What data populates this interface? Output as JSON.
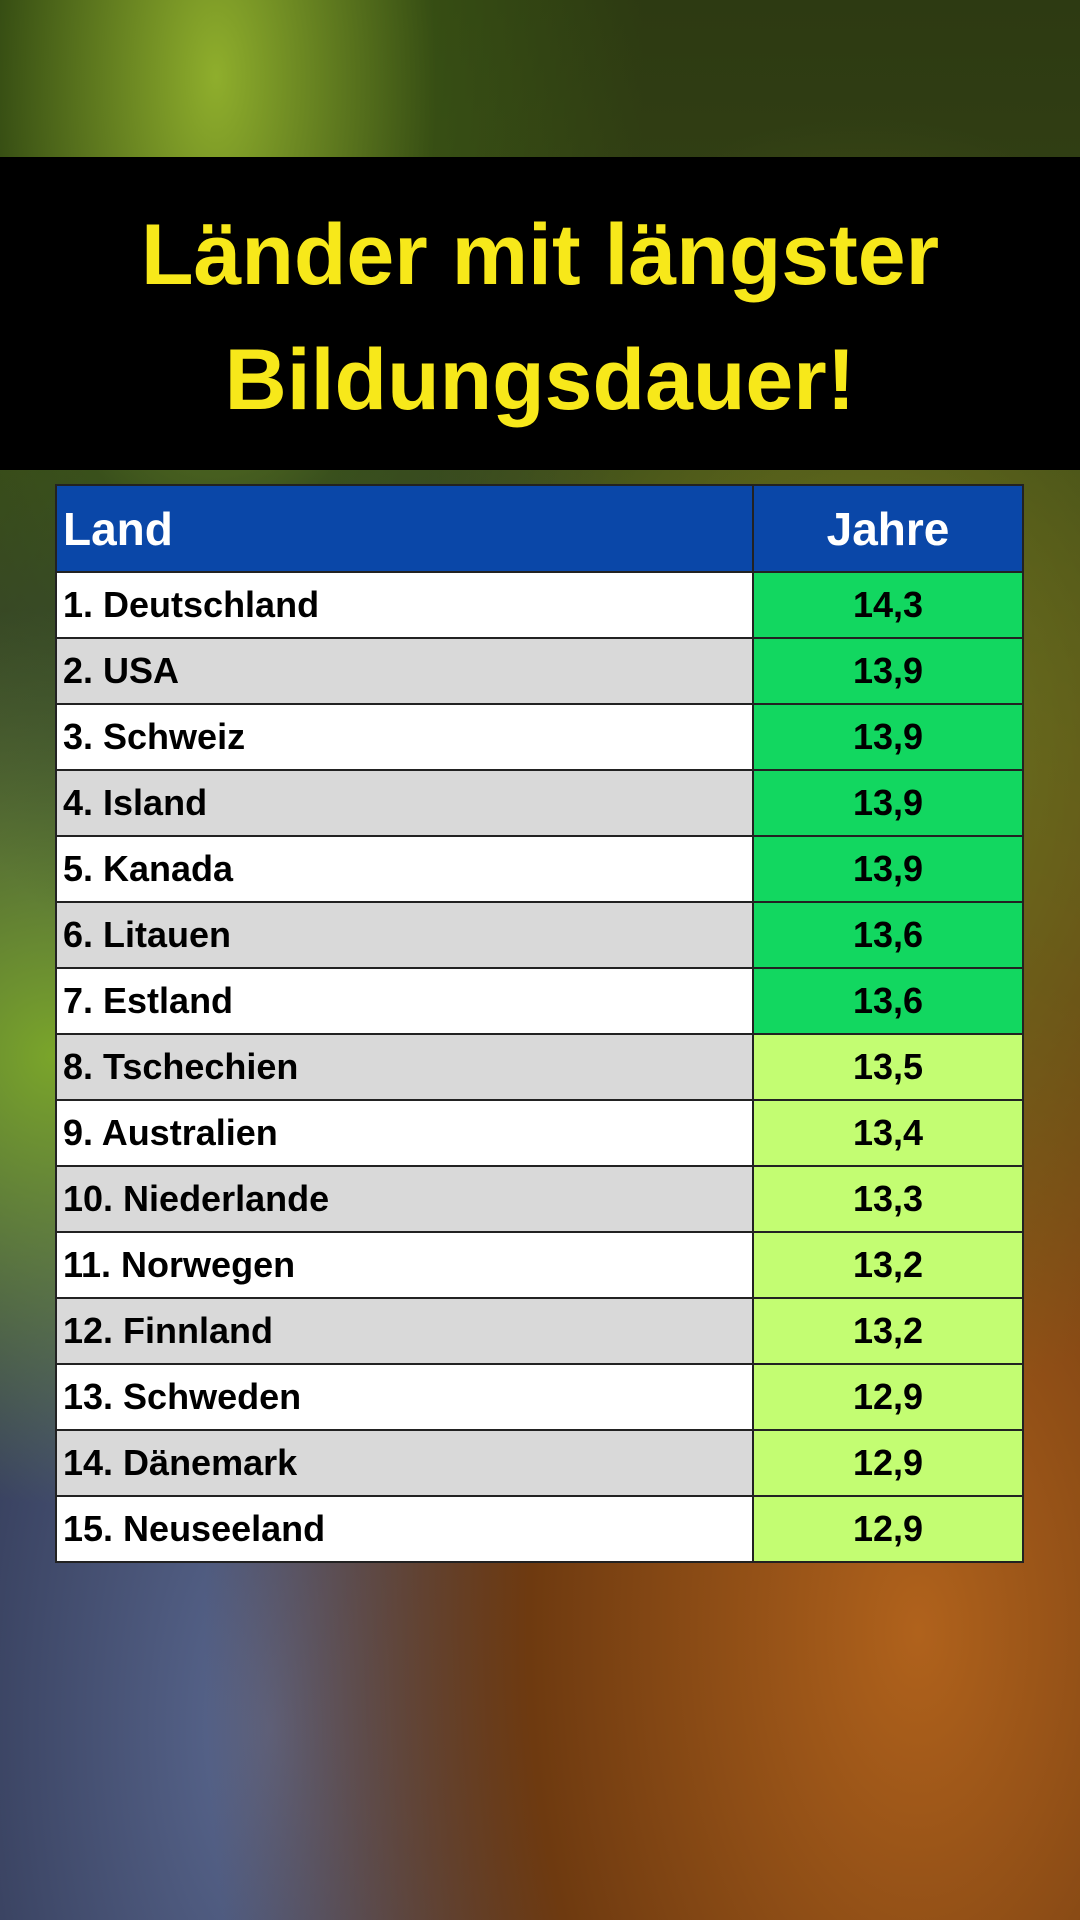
{
  "header": {
    "title_lines": [
      "Länder mit längster",
      "Bildungsdauer!"
    ]
  },
  "table": {
    "columns": [
      "Land",
      "Jahre"
    ],
    "rows": [
      {
        "cells": [
          "1. Deutschland",
          "14,3"
        ],
        "color": "#12d760"
      },
      {
        "cells": [
          "2. USA",
          "13,9"
        ],
        "color": "#12d760"
      },
      {
        "cells": [
          "3. Schweiz",
          "13,9"
        ],
        "color": "#12d760"
      },
      {
        "cells": [
          "4. Island",
          "13,9"
        ],
        "color": "#12d760"
      },
      {
        "cells": [
          "5. Kanada",
          "13,9"
        ],
        "color": "#12d760"
      },
      {
        "cells": [
          "6. Litauen",
          "13,6"
        ],
        "color": "#12d760"
      },
      {
        "cells": [
          "7. Estland",
          "13,6"
        ],
        "color": "#12d760"
      },
      {
        "cells": [
          "8. Tschechien",
          "13,5"
        ],
        "color": "#c3fd72"
      },
      {
        "cells": [
          "9. Australien",
          "13,4"
        ],
        "color": "#c3fd72"
      },
      {
        "cells": [
          "10. Niederlande",
          "13,3"
        ],
        "color": "#c3fd72"
      },
      {
        "cells": [
          "11. Norwegen",
          "13,2"
        ],
        "color": "#c3fd72"
      },
      {
        "cells": [
          "12. Finnland",
          "13,2"
        ],
        "color": "#c3fd72"
      },
      {
        "cells": [
          "13. Schweden",
          "12,9"
        ],
        "color": "#c3fd72"
      },
      {
        "cells": [
          "14. Dänemark",
          "12,9"
        ],
        "color": "#c3fd72"
      },
      {
        "cells": [
          "15. Neuseeland",
          "12,9"
        ],
        "color": "#c3fd72"
      }
    ]
  }
}
